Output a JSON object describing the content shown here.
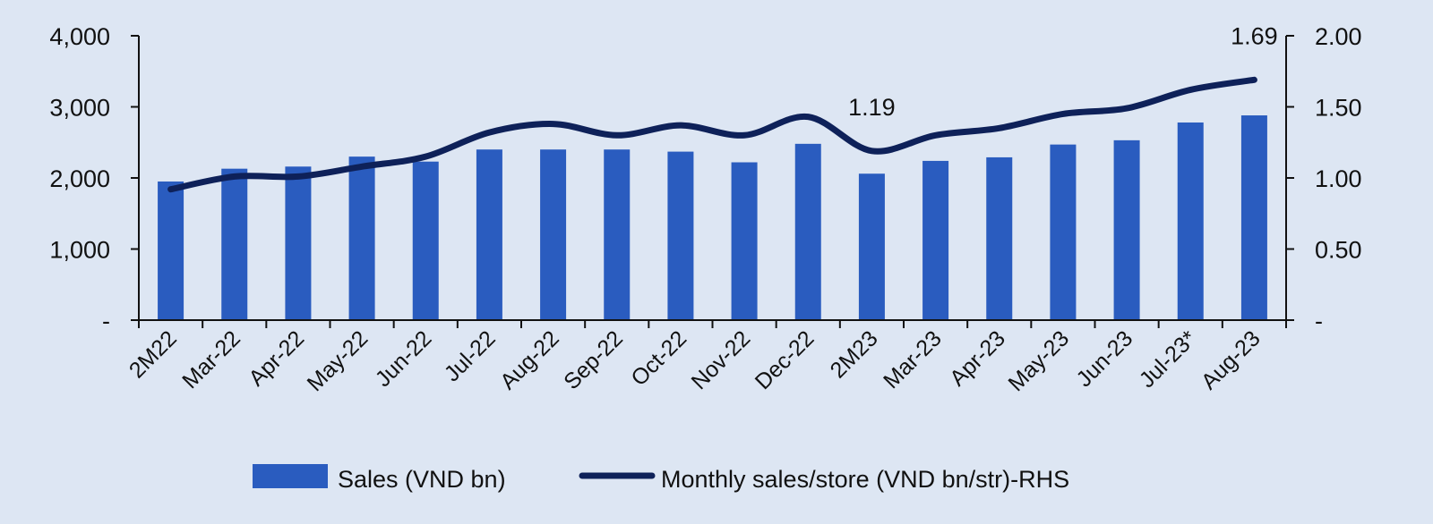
{
  "chart_data": {
    "type": "bar",
    "categories": [
      "2M22",
      "Mar-22",
      "Apr-22",
      "May-22",
      "Jun-22",
      "Jul-22",
      "Aug-22",
      "Sep-22",
      "Oct-22",
      "Nov-22",
      "Dec-22",
      "2M23",
      "Mar-23",
      "Apr-23",
      "May-23",
      "Jun-23",
      "Jul-23*",
      "Aug-23"
    ],
    "series": [
      {
        "name": "Sales (VND bn)",
        "type": "bar",
        "axis": "left",
        "color": "#2a5cbf",
        "values": [
          1950,
          2130,
          2160,
          2300,
          2230,
          2400,
          2400,
          2400,
          2370,
          2220,
          2480,
          2060,
          2240,
          2290,
          2470,
          2530,
          2780,
          2880
        ]
      },
      {
        "name": "Monthly sales/store (VND bn/str)-RHS",
        "type": "line",
        "axis": "right",
        "color": "#0e2159",
        "values": [
          0.92,
          1.01,
          1.01,
          1.08,
          1.15,
          1.32,
          1.38,
          1.3,
          1.37,
          1.3,
          1.43,
          1.19,
          1.3,
          1.35,
          1.45,
          1.49,
          1.62,
          1.69
        ]
      }
    ],
    "left_axis": {
      "ylim": [
        0,
        4000
      ],
      "ticks": [
        "-",
        "1,000",
        "2,000",
        "3,000",
        "4,000"
      ]
    },
    "right_axis": {
      "ylim": [
        0,
        2.0
      ],
      "ticks": [
        "-",
        "0.50",
        "1.00",
        "1.50",
        "2.00"
      ]
    },
    "annotations": [
      {
        "category_index": 11,
        "text": "1.19"
      },
      {
        "category_index": 17,
        "text": "1.69"
      }
    ],
    "title": "",
    "xlabel": "",
    "ylabel": "",
    "grid": false,
    "legend": "bottom"
  }
}
